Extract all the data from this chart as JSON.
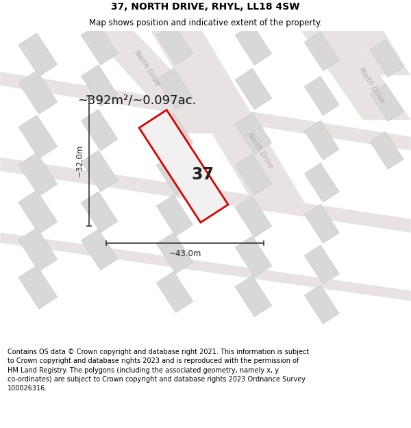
{
  "title": "37, NORTH DRIVE, RHYL, LL18 4SW",
  "subtitle": "Map shows position and indicative extent of the property.",
  "area_text": "~392m²/~0.097ac.",
  "number_label": "37",
  "dim_width": "~43.0m",
  "dim_height": "~32.0m",
  "footer": "Contains OS data © Crown copyright and database right 2021. This information is subject\nto Crown copyright and database rights 2023 and is reproduced with the permission of\nHM Land Registry. The polygons (including the associated geometry, namely x, y\nco-ordinates) are subject to Crown copyright and database rights 2023 Ordnance Survey\n100026316.",
  "map_bg": "#f2f0f0",
  "road_fill": "#e8e2e2",
  "road_label_color": "#b0a8a8",
  "building_fill": "#d8d8d8",
  "building_edge": "#c8c8c8",
  "plot_edge_color": "#dd0000",
  "plot_fill_color": "#f2f0f0",
  "dim_line_color": "#333333",
  "title_fontsize": 10,
  "subtitle_fontsize": 8.5,
  "area_fontsize": 13,
  "number_fontsize": 17,
  "dim_fontsize": 8.5,
  "footer_fontsize": 7.0,
  "road_label_fontsize": 7.5
}
